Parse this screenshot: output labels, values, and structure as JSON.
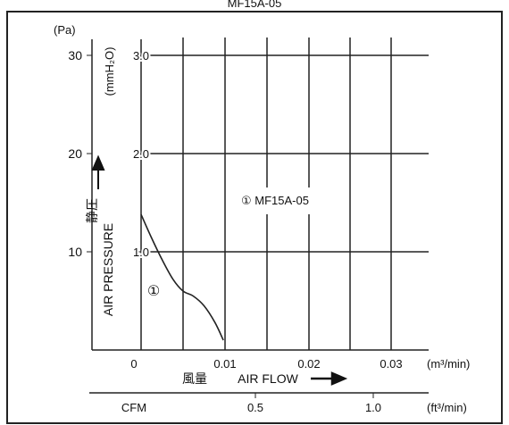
{
  "header": {
    "text": "MF15A-05"
  },
  "chart_data": {
    "type": "line",
    "title": "",
    "pa_unit": "(Pa)",
    "mmh2o_unit": "(mmH₂O)",
    "pa_ticks": [
      "10",
      "20",
      "30"
    ],
    "mmh2o_ticks": [
      "1.0",
      "2.0",
      "3.0"
    ],
    "flow_ticks": [
      "0",
      "0.01",
      "0.02",
      "0.03"
    ],
    "flow_unit": "(m³/min)",
    "cfm_label": "CFM",
    "cfm_ticks": [
      "0.5",
      "1.0"
    ],
    "cfm_unit": "(ft³/min)",
    "ylabel": "AIR PRESSURE",
    "ylabel_jp": "静圧",
    "xlabel": "AIR FLOW",
    "xlabel_jp": "風量",
    "xlim": [
      0,
      0.035
    ],
    "ylim_pa": [
      0,
      30
    ],
    "ylim_mmh2o": [
      0,
      3.0
    ],
    "series": [
      {
        "name": "① MF15A-05",
        "curve_marker": "①",
        "x": [
          0,
          0.0012,
          0.0025,
          0.0038,
          0.005,
          0.0062,
          0.0075,
          0.0088,
          0.0098
        ],
        "y_mmh2o": [
          1.38,
          1.15,
          0.92,
          0.72,
          0.6,
          0.55,
          0.45,
          0.28,
          0.1
        ]
      }
    ],
    "grid": true
  }
}
